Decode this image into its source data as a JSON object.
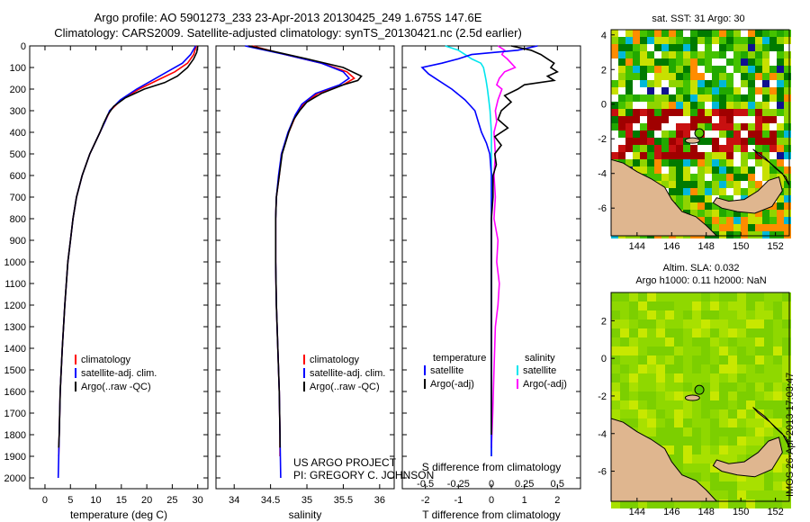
{
  "header": {
    "title_line1": "Argo profile: AO 5901273_233 23-Apr-2013 20130425_249 1.675S 147.6E",
    "title_line2": "Climatology: CARS2009. Satellite-adjusted climatology: synTS_20130421.nc (2.5d earlier)"
  },
  "credit": {
    "line1": "US ARGO PROJECT",
    "line2": "PI: GREGORY C. JOHNSON"
  },
  "stamp": "IMOS 26-Apr-2013 17:03:47",
  "colors": {
    "climatology": "#ff0000",
    "satellite": "#0000ff",
    "argo": "#000000",
    "sal_satellite": "#00e5ee",
    "sal_argo": "#ff00ff",
    "land": "#dfb68f"
  },
  "legends": {
    "temperature": [
      "climatology",
      "satellite-adj. clim.",
      "Argo(..raw -QC)"
    ],
    "salinity": [
      "climatology",
      "satellite-adj. clim.",
      "Argo(..raw -QC)"
    ],
    "difference": {
      "col1_title": "temperature",
      "col2_title": "salinity",
      "items": [
        "satellite",
        "Argo(-adj)",
        "satellite",
        "Argo(-adj)"
      ]
    }
  },
  "chart_data": [
    {
      "type": "line",
      "xlabel": "temperature (deg C)",
      "xlim": [
        -3,
        32
      ],
      "ylim": [
        2050,
        0
      ],
      "xticks": [
        "0",
        "5",
        "10",
        "15",
        "20",
        "25",
        "30"
      ],
      "yticks": [
        "0",
        "100",
        "200",
        "300",
        "400",
        "500",
        "600",
        "700",
        "800",
        "900",
        "1000",
        "1100",
        "1200",
        "1300",
        "1400",
        "1500",
        "1600",
        "1700",
        "1800",
        "1900",
        "2000"
      ],
      "series": [
        {
          "name": "climatology",
          "depth": [
            0,
            40,
            80,
            120,
            160,
            200,
            250,
            300,
            350,
            400,
            500,
            600,
            700,
            800,
            900,
            1000,
            1200,
            1400,
            1600,
            1800,
            1900
          ],
          "values": [
            29.7,
            29.2,
            28.0,
            25.5,
            22.0,
            18.5,
            15.0,
            12.8,
            11.8,
            10.8,
            8.8,
            7.3,
            6.2,
            5.5,
            5.0,
            4.5,
            3.9,
            3.4,
            3.0,
            2.8,
            2.7
          ]
        },
        {
          "name": "satellite-adj. clim.",
          "depth": [
            0,
            40,
            80,
            120,
            160,
            200,
            250,
            300,
            350,
            400,
            500,
            600,
            700,
            800,
            900,
            1000,
            1200,
            1400,
            1600,
            1800,
            2000
          ],
          "values": [
            29.6,
            28.6,
            27.0,
            24.0,
            21.0,
            18.0,
            14.8,
            12.7,
            11.8,
            10.8,
            8.8,
            7.3,
            6.2,
            5.5,
            5.0,
            4.5,
            3.9,
            3.4,
            3.0,
            2.8,
            2.6
          ]
        },
        {
          "name": "Argo(..raw -QC)",
          "depth": [
            0,
            30,
            60,
            100,
            140,
            170,
            200,
            240,
            280,
            320,
            360,
            400,
            500,
            600,
            700,
            800,
            900,
            1000,
            1200,
            1400,
            1600,
            1800,
            1860
          ],
          "values": [
            30.0,
            29.8,
            29.2,
            28.0,
            26.0,
            23.5,
            19.5,
            15.8,
            13.5,
            12.3,
            11.5,
            10.8,
            8.8,
            7.3,
            6.2,
            5.5,
            5.0,
            4.5,
            3.9,
            3.4,
            3.0,
            2.8,
            2.7
          ]
        }
      ]
    },
    {
      "type": "line",
      "xlabel": "salinity",
      "xlim": [
        33.75,
        36.2
      ],
      "ylim": [
        2050,
        0
      ],
      "xticks": [
        "34",
        "34.5",
        "35",
        "35.5",
        "36"
      ],
      "series": [
        {
          "name": "climatology",
          "depth": [
            0,
            40,
            80,
            120,
            150,
            180,
            220,
            270,
            320,
            400,
            500,
            600,
            700,
            800,
            900,
            1000,
            1200,
            1400,
            1600,
            1800,
            1900
          ],
          "values": [
            34.25,
            34.7,
            35.2,
            35.55,
            35.65,
            35.5,
            35.15,
            34.95,
            34.85,
            34.75,
            34.65,
            34.62,
            34.58,
            34.57,
            34.57,
            34.57,
            34.58,
            34.6,
            34.62,
            34.63,
            34.63
          ]
        },
        {
          "name": "satellite-adj. clim.",
          "depth": [
            0,
            40,
            80,
            120,
            150,
            180,
            220,
            270,
            320,
            400,
            500,
            600,
            700,
            800,
            900,
            1000,
            1200,
            1400,
            1600,
            1800,
            2000
          ],
          "values": [
            34.15,
            34.7,
            35.2,
            35.5,
            35.58,
            35.45,
            35.12,
            34.93,
            34.84,
            34.74,
            34.65,
            34.61,
            34.58,
            34.57,
            34.57,
            34.57,
            34.58,
            34.6,
            34.62,
            34.63,
            34.64
          ]
        },
        {
          "name": "Argo(..raw -QC)",
          "depth": [
            0,
            30,
            60,
            100,
            140,
            160,
            180,
            220,
            260,
            300,
            340,
            400,
            500,
            600,
            700,
            800,
            900,
            1000,
            1200,
            1400,
            1600,
            1800,
            1860
          ],
          "values": [
            34.2,
            34.6,
            35.0,
            35.5,
            35.75,
            35.7,
            35.5,
            35.2,
            35.0,
            34.9,
            34.82,
            34.75,
            34.66,
            34.62,
            34.58,
            34.57,
            34.57,
            34.57,
            34.58,
            34.6,
            34.62,
            34.63,
            34.63
          ]
        }
      ]
    },
    {
      "type": "line",
      "xlabel": "T difference from climatology",
      "xlabel_top": "S difference from climatology",
      "xlim": [
        -2.7,
        2.7
      ],
      "ylim": [
        2050,
        0
      ],
      "xticks": [
        "-2",
        "-1",
        "0",
        "1",
        "2"
      ],
      "xticks_sal": [
        "-0.5",
        "-0.25",
        "0",
        "0.25",
        "0.5"
      ],
      "series": [
        {
          "name": "satellite",
          "kind": "temperature",
          "depth": [
            0,
            20,
            40,
            60,
            80,
            100,
            130,
            160,
            200,
            250,
            300,
            350,
            400,
            450,
            500,
            600,
            700,
            800,
            900,
            1000,
            1200,
            1500,
            1800,
            1900
          ],
          "values": [
            1.4,
            0.8,
            -0.6,
            -1.0,
            -1.5,
            -2.1,
            -1.9,
            -1.6,
            -1.2,
            -0.8,
            -0.5,
            -0.4,
            -0.3,
            -0.15,
            -0.05,
            0,
            0,
            0,
            0,
            0,
            0,
            0,
            0,
            0
          ]
        },
        {
          "name": "Argo(-adj)",
          "kind": "temperature",
          "depth": [
            0,
            20,
            40,
            60,
            80,
            100,
            120,
            140,
            160,
            180,
            200,
            230,
            260,
            300,
            340,
            380,
            420,
            460,
            500,
            550,
            600,
            700,
            800,
            900,
            1000,
            1100,
            1200,
            1400,
            1600,
            1800
          ],
          "values": [
            0.6,
            1.2,
            1.5,
            1.7,
            1.9,
            1.8,
            2.0,
            1.7,
            1.9,
            1.0,
            0.8,
            0.4,
            0.6,
            0.3,
            0.2,
            0.5,
            0.1,
            0.3,
            0.1,
            0.15,
            0.05,
            0.05,
            0,
            0,
            0,
            0,
            0,
            0,
            0,
            0
          ]
        },
        {
          "name": "satellite",
          "kind": "salinity",
          "depth": [
            0,
            20,
            40,
            60,
            80,
            100,
            130,
            160,
            200,
            250,
            300,
            400,
            500,
            600,
            700,
            800,
            900,
            1000,
            1200,
            1400,
            1600,
            1800,
            1900
          ],
          "values": [
            -0.35,
            -0.25,
            -0.2,
            -0.15,
            -0.08,
            -0.06,
            -0.05,
            -0.04,
            -0.03,
            -0.02,
            -0.01,
            0,
            0,
            0,
            0,
            0,
            0,
            0,
            0,
            0,
            0,
            0,
            0
          ]
        },
        {
          "name": "Argo(-adj)",
          "kind": "salinity",
          "depth": [
            0,
            20,
            40,
            60,
            80,
            100,
            120,
            150,
            180,
            200,
            250,
            300,
            350,
            400,
            500,
            600,
            700,
            800,
            900,
            1000,
            1100,
            1200,
            1300,
            1500,
            1700,
            1860
          ],
          "values": [
            0.05,
            0.1,
            0.08,
            0.12,
            0.15,
            0.18,
            0.1,
            0.06,
            0.04,
            0.08,
            0.05,
            0.03,
            0.04,
            0.02,
            0.03,
            0.02,
            0.03,
            0.02,
            0.05,
            0.04,
            0.06,
            0.05,
            0.03,
            0.02,
            0.01,
            0
          ]
        }
      ]
    },
    {
      "type": "heatmap",
      "title": "sat. SST: 31 Argo: 30",
      "xticks": [
        "144",
        "146",
        "148",
        "150",
        "152"
      ],
      "yticks": [
        "4",
        "2",
        "0",
        "-2",
        "-4",
        "-6"
      ],
      "xlim": [
        142.5,
        152.8
      ],
      "ylim": [
        -7.6,
        4.3
      ],
      "float_position": {
        "lon": 147.6,
        "lat": -1.675
      }
    },
    {
      "type": "heatmap",
      "title": "Altim. SLA: 0.032",
      "subtitle": "Argo h1000: 0.11 h2000: NaN",
      "xticks": [
        "144",
        "146",
        "148",
        "150",
        "152"
      ],
      "yticks": [
        "2",
        "0",
        "-2",
        "-4",
        "-6"
      ],
      "xlim": [
        142.5,
        152.8
      ],
      "ylim": [
        -7.6,
        3.5
      ],
      "float_position": {
        "lon": 147.6,
        "lat": -1.675
      }
    }
  ]
}
